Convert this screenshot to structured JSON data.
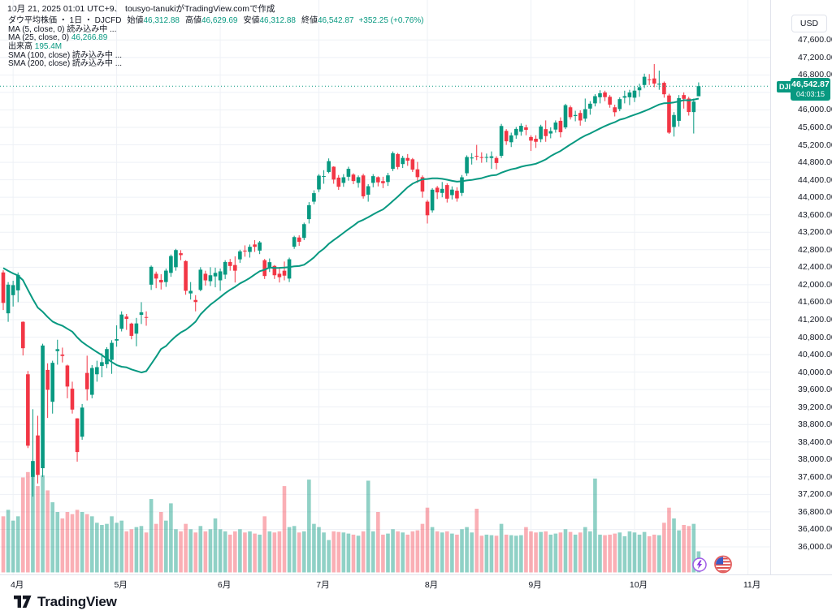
{
  "meta": {
    "attribution": "10月 21, 2025 01:01 UTC+9、 tousyo-tanukiがTradingView.comで作成"
  },
  "legend": {
    "title": "ダウ平均株価 ・ 1日 ・ DJCFD",
    "ohlc": [
      {
        "label": "始値",
        "value": "46,312.88"
      },
      {
        "label": "高値",
        "value": "46,629.69"
      },
      {
        "label": "安値",
        "value": "46,312.88"
      },
      {
        "label": "終値",
        "value": "46,542.87"
      }
    ],
    "change": "+352.25 (+0.76%)",
    "rows": [
      {
        "label": "MA (5, close, 0)",
        "value": "読み込み中 ...",
        "value_class": "plain"
      },
      {
        "label": "MA (25, close, 0)",
        "value": "46,266.89",
        "value_class": "up"
      },
      {
        "label": "出来高",
        "value": "195.4M",
        "value_class": "up"
      },
      {
        "label": "SMA (100, close)",
        "value": "読み込み中 ...",
        "value_class": "plain"
      },
      {
        "label": "SMA (200, close)",
        "value": "読み込み中 ...",
        "value_class": "plain"
      }
    ]
  },
  "price_axis": {
    "currency": "USD",
    "ticks": [
      {
        "p": 47600,
        "label": "47,600.00"
      },
      {
        "p": 47200,
        "label": "47,200.00"
      },
      {
        "p": 46800,
        "label": "46,800.00"
      },
      {
        "p": 46000,
        "label": "46,000.00"
      },
      {
        "p": 45600,
        "label": "45,600.00"
      },
      {
        "p": 45200,
        "label": "45,200.00"
      },
      {
        "p": 44800,
        "label": "44,800.00"
      },
      {
        "p": 44400,
        "label": "44,400.00"
      },
      {
        "p": 44000,
        "label": "44,000.00"
      },
      {
        "p": 43600,
        "label": "43,600.00"
      },
      {
        "p": 43200,
        "label": "43,200.00"
      },
      {
        "p": 42800,
        "label": "42,800.00"
      },
      {
        "p": 42400,
        "label": "42,400.00"
      },
      {
        "p": 42000,
        "label": "42,000.00"
      },
      {
        "p": 41600,
        "label": "41,600.00"
      },
      {
        "p": 41200,
        "label": "41,200.00"
      },
      {
        "p": 40800,
        "label": "40,800.00"
      },
      {
        "p": 40400,
        "label": "40,400.00"
      },
      {
        "p": 40000,
        "label": "40,000.00"
      },
      {
        "p": 39600,
        "label": "39,600.00"
      },
      {
        "p": 39200,
        "label": "39,200.00"
      },
      {
        "p": 38800,
        "label": "38,800.00"
      },
      {
        "p": 38400,
        "label": "38,400.00"
      },
      {
        "p": 38000,
        "label": "38,000.00"
      },
      {
        "p": 37600,
        "label": "37,600.00"
      },
      {
        "p": 37200,
        "label": "37,200.00"
      },
      {
        "p": 36800,
        "label": "36,800.00"
      },
      {
        "p": 36400,
        "label": "36,400.00"
      },
      {
        "p": 36000,
        "label": "36,000.00"
      }
    ]
  },
  "price_label": {
    "symbol": "DJI",
    "price": "46,542.87",
    "countdown": "04:03:15",
    "value": 46542.87
  },
  "time_axis": {
    "months": [
      {
        "label": "4月",
        "i": 2
      },
      {
        "label": "5月",
        "i": 23
      },
      {
        "label": "6月",
        "i": 44
      },
      {
        "label": "7月",
        "i": 64
      },
      {
        "label": "8月",
        "i": 86
      },
      {
        "label": "9月",
        "i": 107
      },
      {
        "label": "10月",
        "i": 128
      },
      {
        "label": "11月",
        "i": 151
      }
    ]
  },
  "footer": {
    "logo_text": "TradingView"
  },
  "chart_data": {
    "type": "candlestick",
    "title": "ダウ平均株価 (DJI / DJCFD), 1日足, USD",
    "ylabel": "USD",
    "ylim": [
      36000,
      47600
    ],
    "grid_step": 400,
    "legend_position": "top-left",
    "grid": true,
    "ma25_current": 46266.89,
    "last_volume_m": 195.4,
    "colors": {
      "up": "#089981",
      "down": "#f23645",
      "volume_up": "rgba(8,153,129,0.45)",
      "volume_down": "rgba(242,54,69,0.40)",
      "ma": "#089981",
      "grid": "#eef1f6",
      "dotted_price_line": "#089981",
      "label_bg": "#089981",
      "axis_text": "#131722"
    },
    "ma25_leadin": [
      43621,
      43461,
      43433,
      43239,
      43840,
      43191,
      42521,
      43006,
      42579,
      42802,
      41912,
      41433,
      41351,
      40814,
      41488,
      41841,
      41581,
      41964,
      41953,
      41985,
      42583,
      42587,
      42455,
      42299
    ],
    "candles_format": [
      "date",
      "open",
      "high",
      "low",
      "close",
      "volume_m"
    ],
    "candles": [
      [
        "3/28",
        42280,
        42330,
        41420,
        41583,
        520
      ],
      [
        "3/31",
        41345,
        42060,
        41150,
        42001,
        580
      ],
      [
        "4/1",
        41760,
        42090,
        41500,
        41990,
        480
      ],
      [
        "4/2",
        41870,
        42280,
        41600,
        42225,
        520
      ],
      [
        "4/3",
        41150,
        41160,
        40380,
        40546,
        880
      ],
      [
        "4/4",
        39950,
        40025,
        38260,
        38315,
        930
      ],
      [
        "4/7",
        37600,
        39150,
        37150,
        37965,
        950
      ],
      [
        "4/8",
        38550,
        39000,
        37450,
        37646,
        800
      ],
      [
        "4/9",
        37800,
        40650,
        37600,
        40608,
        900
      ],
      [
        "4/10",
        40050,
        40200,
        38950,
        39594,
        760
      ],
      [
        "4/11",
        39320,
        40260,
        39050,
        40212,
        650
      ],
      [
        "4/14",
        40480,
        40740,
        40170,
        40524,
        560
      ],
      [
        "4/15",
        40400,
        40560,
        40220,
        40369,
        500
      ],
      [
        "4/16",
        40150,
        40170,
        39400,
        39669,
        560
      ],
      [
        "4/17",
        39620,
        39780,
        39050,
        39142,
        540
      ],
      [
        "4/21",
        38940,
        38945,
        37950,
        38170,
        580
      ],
      [
        "4/22",
        38520,
        39270,
        38450,
        39187,
        560
      ],
      [
        "4/23",
        39980,
        40375,
        39350,
        39606,
        540
      ],
      [
        "4/24",
        39480,
        40160,
        39400,
        40093,
        520
      ],
      [
        "4/25",
        39950,
        40260,
        39780,
        40113,
        460
      ],
      [
        "4/28",
        40140,
        40430,
        39880,
        40227,
        440
      ],
      [
        "4/29",
        40180,
        40570,
        40090,
        40527,
        450
      ],
      [
        "4/30",
        40280,
        40730,
        39960,
        40669,
        520
      ],
      [
        "5/1",
        40720,
        41070,
        40580,
        40753,
        460
      ],
      [
        "5/2",
        40990,
        41390,
        40930,
        41317,
        480
      ],
      [
        "5/5",
        41270,
        41330,
        40965,
        41218,
        380
      ],
      [
        "5/6",
        41110,
        41130,
        40750,
        40829,
        400
      ],
      [
        "5/7",
        40880,
        41240,
        40590,
        41113,
        420
      ],
      [
        "5/8",
        41310,
        41600,
        41100,
        41368,
        430
      ],
      [
        "5/9",
        41260,
        41390,
        41060,
        41249,
        370
      ],
      [
        "5/12",
        42000,
        42440,
        41880,
        42410,
        680
      ],
      [
        "5/13",
        42250,
        42300,
        41920,
        42140,
        450
      ],
      [
        "5/14",
        42110,
        42240,
        41890,
        42051,
        560
      ],
      [
        "5/15",
        42060,
        42370,
        41950,
        42322,
        480
      ],
      [
        "5/16",
        42270,
        42690,
        42180,
        42655,
        640
      ],
      [
        "5/19",
        42400,
        42820,
        42320,
        42792,
        400
      ],
      [
        "5/20",
        42720,
        42790,
        42560,
        42677,
        380
      ],
      [
        "5/21",
        42540,
        42560,
        41770,
        41860,
        450
      ],
      [
        "5/22",
        41800,
        42060,
        41660,
        41859,
        400
      ],
      [
        "5/23",
        41650,
        41760,
        41390,
        41603,
        370
      ],
      [
        "5/27",
        41880,
        42400,
        41850,
        42343,
        430
      ],
      [
        "5/28",
        42250,
        42320,
        41980,
        42099,
        380
      ],
      [
        "5/29",
        42080,
        42400,
        41970,
        42216,
        400
      ],
      [
        "5/30",
        42190,
        42390,
        41940,
        42270,
        500
      ],
      [
        "6/2",
        42100,
        42370,
        41860,
        42305,
        400
      ],
      [
        "6/3",
        42230,
        42560,
        42130,
        42520,
        380
      ],
      [
        "6/4",
        42520,
        42590,
        42320,
        42428,
        350
      ],
      [
        "6/5",
        42450,
        42650,
        42050,
        42320,
        380
      ],
      [
        "6/6",
        42580,
        42800,
        42500,
        42763,
        400
      ],
      [
        "6/9",
        42780,
        42900,
        42640,
        42762,
        370
      ],
      [
        "6/10",
        42750,
        42920,
        42620,
        42867,
        380
      ],
      [
        "6/11",
        42920,
        43020,
        42750,
        42866,
        360
      ],
      [
        "6/12",
        42780,
        43000,
        42700,
        42968,
        350
      ],
      [
        "6/13",
        42560,
        42590,
        42130,
        42198,
        520
      ],
      [
        "6/16",
        42380,
        42600,
        42290,
        42515,
        380
      ],
      [
        "6/17",
        42430,
        42450,
        42130,
        42216,
        370
      ],
      [
        "6/18",
        42250,
        42400,
        42050,
        42172,
        380
      ],
      [
        "6/20",
        42320,
        42530,
        42100,
        42207,
        800
      ],
      [
        "6/23",
        42140,
        42620,
        42060,
        42582,
        420
      ],
      [
        "6/24",
        42870,
        43120,
        42820,
        43089,
        430
      ],
      [
        "6/25",
        43080,
        43130,
        42890,
        42982,
        370
      ],
      [
        "6/26",
        43070,
        43420,
        43020,
        43386,
        380
      ],
      [
        "6/27",
        43500,
        43890,
        43400,
        43819,
        860
      ],
      [
        "6/30",
        43900,
        44160,
        43840,
        44095,
        450
      ],
      [
        "7/1",
        44180,
        44530,
        44120,
        44495,
        420
      ],
      [
        "7/2",
        44470,
        44620,
        44310,
        44485,
        370
      ],
      [
        "7/3",
        44580,
        44890,
        44550,
        44828,
        300
      ],
      [
        "7/7",
        44700,
        44710,
        44310,
        44406,
        380
      ],
      [
        "7/8",
        44450,
        44510,
        44170,
        44241,
        375
      ],
      [
        "7/9",
        44330,
        44530,
        44240,
        44458,
        370
      ],
      [
        "7/10",
        44470,
        44700,
        44380,
        44651,
        360
      ],
      [
        "7/11",
        44520,
        44550,
        44300,
        44372,
        350
      ],
      [
        "7/14",
        44330,
        44500,
        44220,
        44460,
        340
      ],
      [
        "7/15",
        44500,
        44540,
        43970,
        44023,
        380
      ],
      [
        "7/16",
        44060,
        44300,
        43900,
        44254,
        850
      ],
      [
        "7/17",
        44330,
        44530,
        44230,
        44484,
        380
      ],
      [
        "7/18",
        44460,
        44480,
        44250,
        44342,
        560
      ],
      [
        "7/21",
        44370,
        44470,
        44210,
        44323,
        350
      ],
      [
        "7/22",
        44350,
        44560,
        44260,
        44502,
        360
      ],
      [
        "7/23",
        44650,
        45050,
        44600,
        45010,
        400
      ],
      [
        "7/24",
        44990,
        45015,
        44640,
        44694,
        380
      ],
      [
        "7/25",
        44760,
        44950,
        44670,
        44902,
        370
      ],
      [
        "7/28",
        44900,
        44990,
        44720,
        44838,
        350
      ],
      [
        "7/29",
        44870,
        44900,
        44580,
        44633,
        380
      ],
      [
        "7/30",
        44640,
        44810,
        44330,
        44461,
        390
      ],
      [
        "7/31",
        44460,
        44500,
        43990,
        44131,
        450
      ],
      [
        "8/1",
        43900,
        43940,
        43400,
        43589,
        600
      ],
      [
        "8/4",
        43700,
        44210,
        43650,
        44174,
        420
      ],
      [
        "8/5",
        44220,
        44260,
        43960,
        44112,
        380
      ],
      [
        "8/6",
        44100,
        44350,
        44000,
        44193,
        370
      ],
      [
        "8/7",
        44280,
        44320,
        43880,
        43969,
        380
      ],
      [
        "8/8",
        44050,
        44250,
        43950,
        44176,
        360
      ],
      [
        "8/11",
        44150,
        44230,
        43900,
        43975,
        350
      ],
      [
        "8/12",
        44100,
        44510,
        44030,
        44458,
        400
      ],
      [
        "8/13",
        44550,
        44960,
        44490,
        44922,
        420
      ],
      [
        "8/14",
        44890,
        45010,
        44750,
        44911,
        370
      ],
      [
        "8/15",
        44950,
        45200,
        44850,
        44946,
        590
      ],
      [
        "8/18",
        44920,
        45030,
        44790,
        44912,
        340
      ],
      [
        "8/19",
        44920,
        45000,
        44800,
        44922,
        350
      ],
      [
        "8/20",
        44900,
        45050,
        44650,
        44938,
        345
      ],
      [
        "8/21",
        44900,
        44940,
        44640,
        44785,
        340
      ],
      [
        "8/22",
        44950,
        45680,
        44900,
        45632,
        450
      ],
      [
        "8/25",
        45520,
        45560,
        45200,
        45282,
        350
      ],
      [
        "8/26",
        45260,
        45480,
        45150,
        45418,
        345
      ],
      [
        "8/27",
        45420,
        45610,
        45340,
        45565,
        340
      ],
      [
        "8/28",
        45500,
        45690,
        45410,
        45636,
        345
      ],
      [
        "8/29",
        45600,
        45660,
        45420,
        45545,
        420
      ],
      [
        "9/2",
        45380,
        45420,
        45060,
        45296,
        380
      ],
      [
        "9/3",
        45340,
        45420,
        45130,
        45271,
        370
      ],
      [
        "9/4",
        45330,
        45660,
        45260,
        45621,
        375
      ],
      [
        "9/5",
        45560,
        45760,
        45270,
        45401,
        380
      ],
      [
        "9/8",
        45460,
        45600,
        45350,
        45515,
        350
      ],
      [
        "9/9",
        45550,
        45760,
        45480,
        45711,
        360
      ],
      [
        "9/10",
        45750,
        45830,
        45370,
        45490,
        370
      ],
      [
        "9/11",
        45600,
        46140,
        45560,
        46108,
        400
      ],
      [
        "9/12",
        46060,
        46100,
        45780,
        45834,
        375
      ],
      [
        "9/15",
        45860,
        45980,
        45740,
        45883,
        350
      ],
      [
        "9/16",
        45930,
        45990,
        45640,
        45758,
        370
      ],
      [
        "9/17",
        45800,
        46260,
        45730,
        46018,
        420
      ],
      [
        "9/18",
        46030,
        46200,
        45890,
        46142,
        380
      ],
      [
        "9/19",
        46150,
        46360,
        46080,
        46315,
        870
      ],
      [
        "9/22",
        46290,
        46450,
        46150,
        46381,
        350
      ],
      [
        "9/23",
        46400,
        46440,
        46200,
        46293,
        345
      ],
      [
        "9/24",
        46300,
        46340,
        46050,
        46121,
        350
      ],
      [
        "9/25",
        46060,
        46120,
        45850,
        45947,
        360
      ],
      [
        "9/26",
        46020,
        46290,
        45970,
        46247,
        370
      ],
      [
        "9/29",
        46280,
        46440,
        46150,
        46316,
        335
      ],
      [
        "9/30",
        46290,
        46460,
        46110,
        46398,
        380
      ],
      [
        "10/1",
        46280,
        46540,
        46180,
        46441,
        370
      ],
      [
        "10/2",
        46450,
        46600,
        46300,
        46520,
        350
      ],
      [
        "10/3",
        46570,
        46830,
        46500,
        46758,
        375
      ],
      [
        "10/6",
        46700,
        46820,
        46570,
        46694,
        335
      ],
      [
        "10/7",
        46720,
        47050,
        46520,
        46603,
        350
      ],
      [
        "10/8",
        46580,
        46900,
        46460,
        46601,
        345
      ],
      [
        "10/9",
        46620,
        46650,
        46280,
        46358,
        460
      ],
      [
        "10/10",
        46330,
        46370,
        45450,
        45480,
        600
      ],
      [
        "10/13",
        45610,
        45950,
        45390,
        45883,
        500
      ],
      [
        "10/14",
        45750,
        46340,
        45620,
        46270,
        390
      ],
      [
        "10/15",
        46340,
        46400,
        46030,
        46253,
        440
      ],
      [
        "10/16",
        46260,
        46300,
        45870,
        45952,
        430
      ],
      [
        "10/17",
        45950,
        46260,
        45460,
        46190,
        450
      ],
      [
        "10/20",
        46312.88,
        46629.69,
        46312.88,
        46542.87,
        195.4
      ]
    ]
  },
  "icons": {
    "realtime": "lightning-icon",
    "market_flag": "us-flag-icon"
  }
}
